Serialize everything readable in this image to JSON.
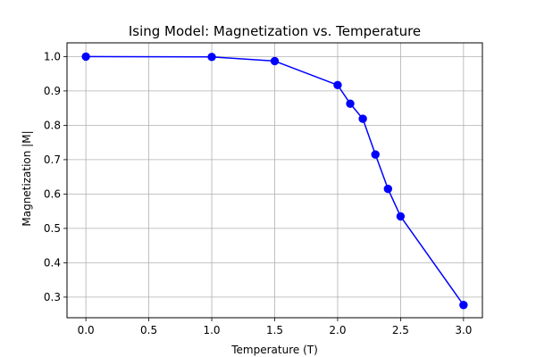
{
  "chart_data": {
    "type": "line",
    "title": "Ising Model: Magnetization vs. Temperature",
    "xlabel": "Temperature (T)",
    "ylabel": "Magnetization |M|",
    "xlim": [
      -0.15,
      3.15
    ],
    "ylim": [
      0.24,
      1.04
    ],
    "xticks": [
      0.0,
      0.5,
      1.0,
      1.5,
      2.0,
      2.5,
      3.0
    ],
    "xtick_labels": [
      "0.0",
      "0.5",
      "1.0",
      "1.5",
      "2.0",
      "2.5",
      "3.0"
    ],
    "yticks": [
      0.3,
      0.4,
      0.5,
      0.6,
      0.7,
      0.8,
      0.9,
      1.0
    ],
    "ytick_labels": [
      "0.3",
      "0.4",
      "0.5",
      "0.6",
      "0.7",
      "0.8",
      "0.9",
      "1.0"
    ],
    "grid": true,
    "legend": "none",
    "series": [
      {
        "color": "#0000ff",
        "marker": "circle",
        "x": [
          0.0,
          1.0,
          1.5,
          2.0,
          2.1,
          2.2,
          2.3,
          2.4,
          2.5,
          3.0
        ],
        "y": [
          1.0,
          0.999,
          0.987,
          0.917,
          0.863,
          0.819,
          0.715,
          0.615,
          0.535,
          0.277
        ]
      }
    ]
  }
}
